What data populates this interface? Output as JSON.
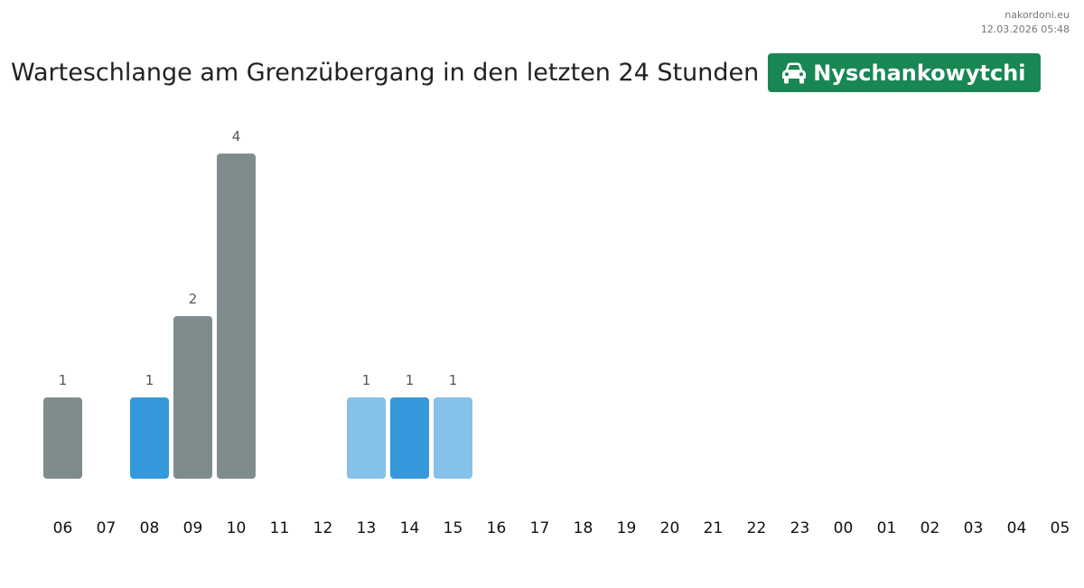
{
  "watermark": {
    "site": "nakordoni.eu",
    "timestamp": "12.03.2026 05:48"
  },
  "header": {
    "title": "Warteschlange am Grenzübergang in den letzten 24 Stunden",
    "crossing_name": "Nyschankowytchi",
    "crossing_icon": "car-icon",
    "crossing_color": "#198754"
  },
  "chart_data": {
    "type": "bar",
    "title": "Warteschlange am Grenzübergang in den letzten 24 Stunden",
    "xlabel": "",
    "ylabel": "",
    "categories": [
      "06",
      "07",
      "08",
      "09",
      "10",
      "11",
      "12",
      "13",
      "14",
      "15",
      "16",
      "17",
      "18",
      "19",
      "20",
      "21",
      "22",
      "23",
      "00",
      "01",
      "02",
      "03",
      "04",
      "05"
    ],
    "values": [
      1,
      null,
      1,
      2,
      4,
      null,
      null,
      1,
      1,
      1,
      null,
      null,
      null,
      null,
      null,
      null,
      null,
      null,
      null,
      null,
      null,
      null,
      null,
      null
    ],
    "bar_colors": [
      "#7f8c8d",
      null,
      "#3498db",
      "#7f8c8d",
      "#7f8c8d",
      null,
      null,
      "#85c1e9",
      "#3498db",
      "#85c1e9",
      null,
      null,
      null,
      null,
      null,
      null,
      null,
      null,
      null,
      null,
      null,
      null,
      null,
      null
    ],
    "ylim": [
      0,
      4
    ],
    "grid": false,
    "legend": "none",
    "colors": {
      "label": "#555555",
      "tick": "#111111"
    }
  }
}
